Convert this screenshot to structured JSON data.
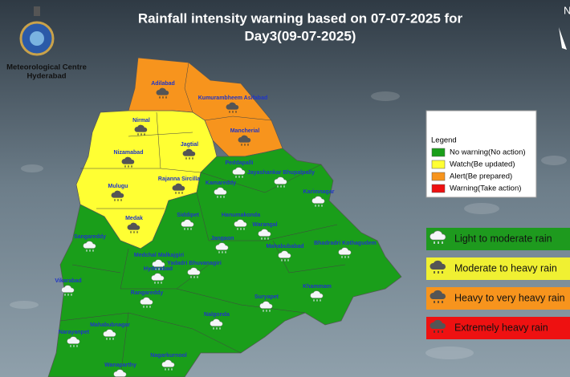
{
  "header": {
    "org": [
      "Meteorological Centre",
      "Hyderabad"
    ],
    "title": [
      "Rainfall intensity warning based on 07-07-2025 for",
      "Day3(09-07-2025)"
    ],
    "compass": "N"
  },
  "legend": {
    "title": "Legend",
    "items": [
      {
        "label": "No warning(No action)",
        "color": "#1a9e1a"
      },
      {
        "label": "Watch(Be updated)",
        "color": "#ffff33"
      },
      {
        "label": "Alert(Be prepared)",
        "color": "#f7941d"
      },
      {
        "label": "Warning(Take action)",
        "color": "#ee1111"
      }
    ]
  },
  "rain_legend": [
    {
      "label": "Light to moderate rain",
      "color": "#1e9a1e"
    },
    {
      "label": "Moderate to heavy rain",
      "color": "#f0f032"
    },
    {
      "label": "Heavy to very heavy rain",
      "color": "#f7941d"
    },
    {
      "label": "Extremely heavy rain",
      "color": "#ee1111"
    }
  ],
  "districts": [
    "Adilabad",
    "Kumurambheem Asifabad",
    "Nirmal",
    "Mancherial",
    "Nizamabad",
    "Jagtial",
    "Peddapalli",
    "Jayashankar Bhupalpally",
    "Rajanna Sircilla",
    "Kamareddy",
    "Karimnagar",
    "Mulugu",
    "Siddipet",
    "Hanumakonda",
    "Warangal",
    "Medak",
    "Sangareddy",
    "Jangaon",
    "Mahabubabad",
    "Bhadradri Kothagudem",
    "Medchal Malkajgiri",
    "Hyderabad",
    "Yadadri Bhuvanagiri",
    "Vikarabad",
    "Rangareddy",
    "Suryapet",
    "Khammam",
    "Nalgonda",
    "Narayanpet",
    "Mahabubnagar",
    "Nagarkurnool",
    "Wanaparthy"
  ]
}
